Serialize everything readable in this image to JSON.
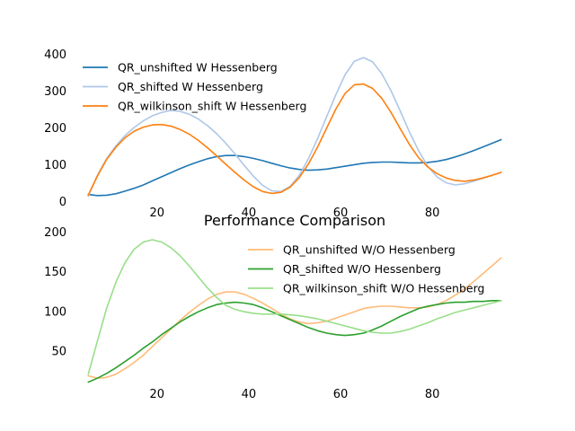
{
  "chart_data": [
    {
      "type": "line",
      "title": "",
      "xlabel": "",
      "ylabel": "",
      "xlim": [
        3,
        97
      ],
      "ylim": [
        0,
        400
      ],
      "xticks": [
        20,
        40,
        60,
        80
      ],
      "yticks": [
        0,
        100,
        200,
        300,
        400
      ],
      "xtick_labels": [
        "20",
        "40",
        "60",
        "80"
      ],
      "ytick_labels": [
        "0",
        "100",
        "200",
        "300",
        "400"
      ],
      "grid": false,
      "legend_position": "upper-left",
      "x": [
        5,
        7,
        9,
        11,
        13,
        15,
        17,
        19,
        21,
        23,
        25,
        27,
        29,
        31,
        33,
        35,
        37,
        39,
        41,
        43,
        45,
        47,
        49,
        51,
        53,
        55,
        57,
        59,
        61,
        63,
        65,
        67,
        69,
        71,
        73,
        75,
        77,
        79,
        81,
        83,
        85,
        87,
        89,
        91,
        93,
        95
      ],
      "series": [
        {
          "name": "QR_unshifted W Hessenberg",
          "color": "#1f77b4",
          "values": [
            18,
            15,
            16,
            20,
            27,
            35,
            44,
            55,
            66,
            77,
            88,
            98,
            107,
            115,
            121,
            124,
            124,
            121,
            116,
            110,
            103,
            96,
            90,
            86,
            84,
            85,
            87,
            91,
            95,
            99,
            103,
            105,
            106,
            106,
            105,
            104,
            104,
            105,
            108,
            113,
            120,
            128,
            137,
            147,
            157,
            167
          ]
        },
        {
          "name": "QR_shifted W Hessenberg",
          "color": "#aec7e8",
          "values": [
            14,
            70,
            115,
            150,
            178,
            200,
            218,
            232,
            241,
            246,
            244,
            236,
            223,
            205,
            183,
            157,
            128,
            97,
            68,
            43,
            28,
            26,
            40,
            70,
            115,
            170,
            230,
            290,
            344,
            380,
            390,
            378,
            346,
            300,
            245,
            188,
            137,
            95,
            66,
            50,
            44,
            47,
            54,
            62,
            70,
            78
          ]
        },
        {
          "name": "QR_wilkinson_shift W Hessenberg",
          "color": "#ff7f0e",
          "values": [
            16,
            68,
            113,
            146,
            172,
            190,
            201,
            207,
            208,
            204,
            195,
            182,
            165,
            145,
            123,
            100,
            78,
            57,
            39,
            26,
            21,
            24,
            38,
            64,
            101,
            147,
            199,
            251,
            293,
            316,
            318,
            306,
            279,
            241,
            197,
            154,
            118,
            93,
            75,
            63,
            56,
            54,
            57,
            63,
            70,
            78
          ]
        }
      ]
    },
    {
      "type": "line",
      "title": "Performance Comparison",
      "xlabel": "",
      "ylabel": "",
      "xlim": [
        3,
        97
      ],
      "ylim": [
        5,
        207
      ],
      "xticks": [
        20,
        40,
        60,
        80
      ],
      "yticks": [
        50,
        100,
        150,
        200
      ],
      "xtick_labels": [
        "20",
        "40",
        "60",
        "80"
      ],
      "ytick_labels": [
        "50",
        "100",
        "150",
        "200"
      ],
      "grid": false,
      "legend_position": "upper-right",
      "x": [
        5,
        7,
        9,
        11,
        13,
        15,
        17,
        19,
        21,
        23,
        25,
        27,
        29,
        31,
        33,
        35,
        37,
        39,
        41,
        43,
        45,
        47,
        49,
        51,
        53,
        55,
        57,
        59,
        61,
        63,
        65,
        67,
        69,
        71,
        73,
        75,
        77,
        79,
        81,
        83,
        85,
        87,
        89,
        91,
        93,
        95
      ],
      "series": [
        {
          "name": "QR_unshifted W/O Hessenberg",
          "color": "#ffbb78",
          "values": [
            18,
            15,
            16,
            20,
            27,
            35,
            44,
            55,
            66,
            77,
            88,
            98,
            107,
            115,
            121,
            124,
            124,
            121,
            116,
            110,
            103,
            96,
            90,
            86,
            84,
            85,
            87,
            91,
            95,
            99,
            103,
            105,
            106,
            106,
            105,
            104,
            104,
            105,
            108,
            113,
            120,
            128,
            137,
            147,
            157,
            167
          ]
        },
        {
          "name": "QR_shifted W/O Hessenberg",
          "color": "#2ca02c",
          "values": [
            10,
            15,
            21,
            28,
            36,
            44,
            53,
            61,
            70,
            78,
            86,
            93,
            99,
            104,
            108,
            110,
            111,
            110,
            108,
            104,
            99,
            94,
            89,
            84,
            79,
            75,
            72,
            70,
            69,
            70,
            72,
            76,
            81,
            87,
            93,
            98,
            103,
            106,
            108,
            110,
            111,
            111,
            112,
            112,
            113,
            113
          ]
        },
        {
          "name": "QR_wilkinson_shift W/O Hessenberg",
          "color": "#98df8a",
          "values": [
            20,
            62,
            103,
            136,
            161,
            178,
            187,
            190,
            187,
            180,
            170,
            157,
            143,
            129,
            117,
            107,
            102,
            99,
            97,
            96,
            96,
            96,
            95,
            94,
            92,
            90,
            87,
            84,
            81,
            78,
            75,
            73,
            72,
            72,
            74,
            77,
            81,
            85,
            90,
            94,
            98,
            101,
            104,
            107,
            110,
            113
          ]
        }
      ]
    }
  ]
}
